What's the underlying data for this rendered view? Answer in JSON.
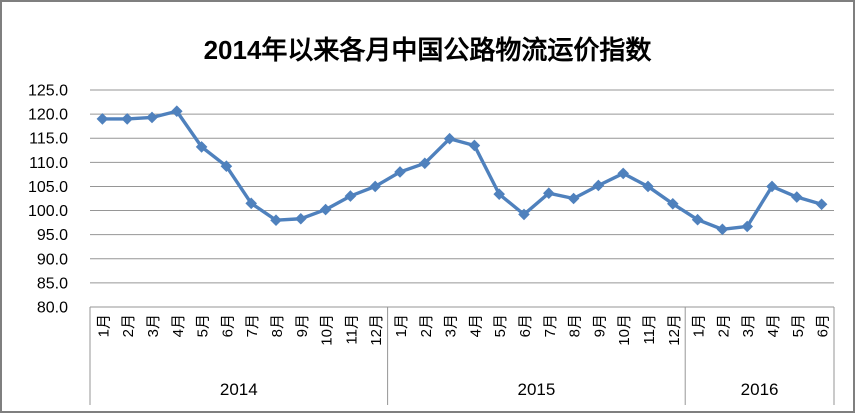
{
  "colors": {
    "line": "#4F81BD",
    "grid": "#969696",
    "axis": "#969696",
    "text": "#000000",
    "border": "#7F7F7F",
    "background": "#FFFFFF"
  },
  "chart_data": {
    "type": "line",
    "title": "2014年以来各月中国公路物流运价指数",
    "marker": "diamond",
    "grid": true,
    "legend": null,
    "ylim": [
      80,
      125
    ],
    "ytick_step": 5,
    "ytick_labels": [
      "125.0",
      "120.0",
      "115.0",
      "110.0",
      "105.0",
      "100.0",
      "95.0",
      "90.0",
      "85.0",
      "80.0"
    ],
    "categories": [
      "1月",
      "2月",
      "3月",
      "4月",
      "5月",
      "6月",
      "7月",
      "8月",
      "9月",
      "10月",
      "11月",
      "12月",
      "1月",
      "2月",
      "3月",
      "4月",
      "5月",
      "6月",
      "7月",
      "8月",
      "9月",
      "10月",
      "11月",
      "12月",
      "1月",
      "2月",
      "3月",
      "4月",
      "5月",
      "6月"
    ],
    "year_groups": [
      {
        "label": "2014",
        "count": 12
      },
      {
        "label": "2015",
        "count": 12
      },
      {
        "label": "2016",
        "count": 6
      }
    ],
    "series": [
      {
        "values": [
          119.0,
          119.0,
          119.3,
          120.6,
          113.2,
          109.2,
          101.5,
          98.0,
          98.3,
          100.2,
          103.0,
          105.0,
          108.0,
          109.8,
          114.9,
          113.5,
          103.4,
          99.2,
          103.6,
          102.5,
          105.2,
          107.7,
          105.0,
          101.4,
          98.1,
          96.1,
          96.7,
          105.0,
          102.8,
          101.3
        ]
      }
    ]
  }
}
